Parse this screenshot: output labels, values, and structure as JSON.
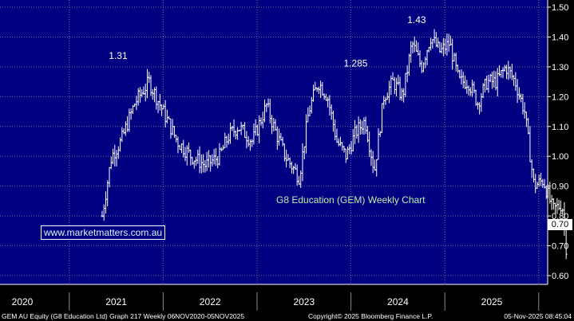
{
  "colors": {
    "plot_bg": "#000080",
    "axis_bg": "#000000",
    "price_bars": "#ffffff",
    "grid": "#6a6a9a",
    "chart_title": "#b6f0a8"
  },
  "website": "www.marketmatters.com.au",
  "last_price_label": "0.70",
  "footer": {
    "left": "GEM AU Equity (G8 Education Ltd) Graph 217 Weekly 06NOV2020-05NOV2025",
    "center": "Copyright© 2025 Bloomberg Finance L.P.",
    "right": "05-Nov-2025 08:45:04"
  },
  "chart_data": {
    "type": "bar",
    "style": "ohlc",
    "title": "G8 Education (GEM) Weekly Chart",
    "xlabel": "",
    "ylabel": "",
    "ylim": [
      0.58,
      1.52
    ],
    "grid": true,
    "y_axis_side": "right",
    "y_ticks": [
      "1.50",
      "1.40",
      "1.30",
      "1.20",
      "1.10",
      "1.00",
      "0.90",
      "0.80",
      "0.70",
      "0.60"
    ],
    "x_ticks": [
      "2020",
      "2021",
      "2022",
      "2023",
      "2024",
      "2025"
    ],
    "annotations": [
      {
        "label": "1.31",
        "x": 2021.02,
        "y": 1.31
      },
      {
        "label": "1.285",
        "x": 2023.55,
        "y": 1.285
      },
      {
        "label": "1.43",
        "x": 2024.2,
        "y": 1.43
      }
    ],
    "series": [
      {
        "x": [
          2020.85,
          2020.95,
          2021.05,
          2021.2,
          2021.35,
          2021.5,
          2021.65,
          2021.8,
          2021.95,
          2022.1,
          2022.2,
          2022.3,
          2022.45,
          2022.6,
          2022.7,
          2022.8,
          2022.95,
          2023.05,
          2023.15,
          2023.25,
          2023.35,
          2023.45,
          2023.55,
          2023.65,
          2023.75,
          2023.85,
          2023.95,
          2024.05,
          2024.15,
          2024.25,
          2024.35,
          2024.45,
          2024.55,
          2024.65,
          2024.75,
          2024.85,
          2024.95,
          2025.05,
          2025.15,
          2025.25,
          2025.35,
          2025.45,
          2025.55,
          2025.65,
          2025.75,
          2025.8
        ],
        "values": [
          0.8,
          1.0,
          1.05,
          1.18,
          1.25,
          1.15,
          1.05,
          1.0,
          0.97,
          1.0,
          1.07,
          1.1,
          1.05,
          1.17,
          1.08,
          1.0,
          0.93,
          1.15,
          1.25,
          1.2,
          1.05,
          1.0,
          1.08,
          1.12,
          0.95,
          1.2,
          1.25,
          1.2,
          1.38,
          1.3,
          1.4,
          1.35,
          1.38,
          1.25,
          1.25,
          1.18,
          1.25,
          1.25,
          1.3,
          1.25,
          1.15,
          0.9,
          0.92,
          0.82,
          0.84,
          0.67
        ]
      }
    ]
  }
}
